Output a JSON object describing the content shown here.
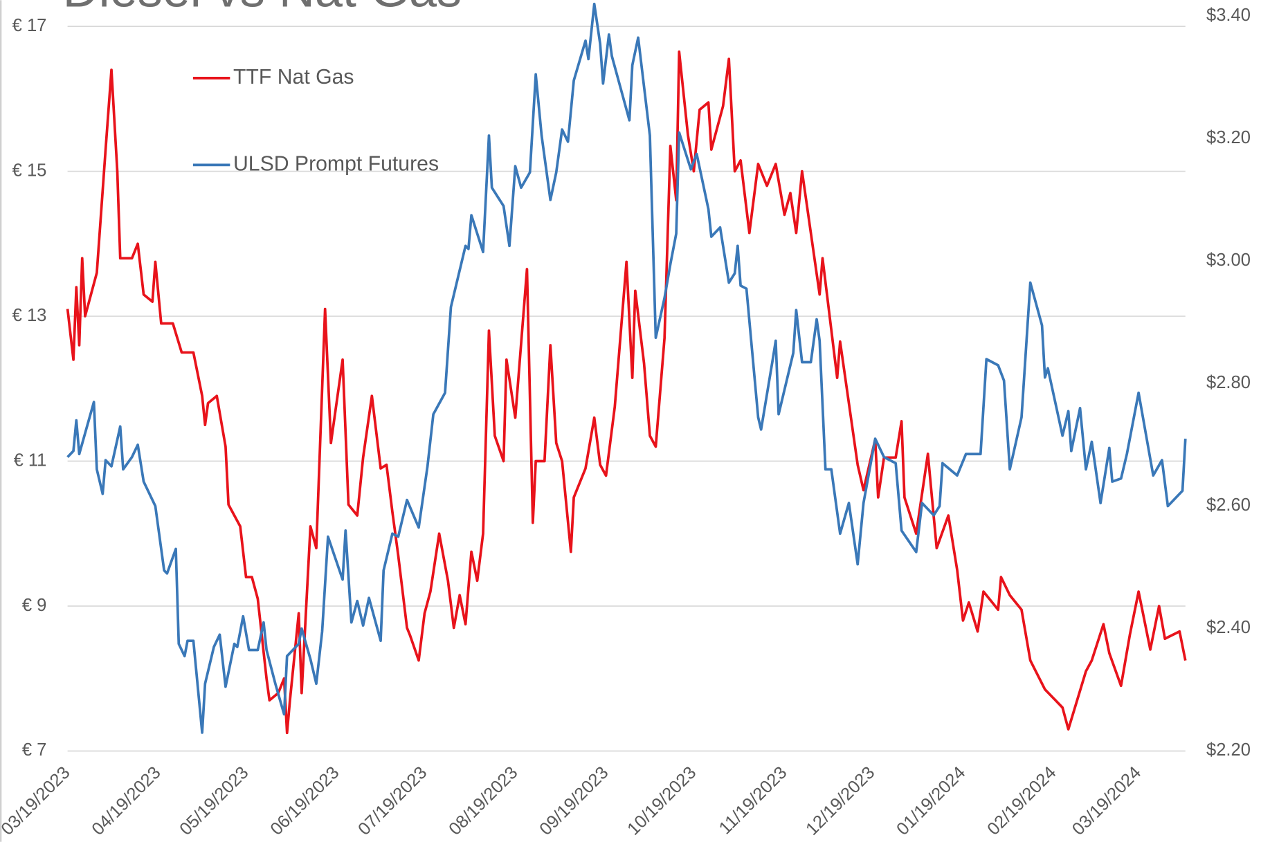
{
  "chart_data": {
    "type": "line",
    "title": "Diesel vs Nat Gas",
    "legend": "upper left",
    "grid": true,
    "xlim": [
      "03/19/2023",
      "04/04/2024"
    ],
    "xticks": [
      "03/19/2023",
      "04/19/2023",
      "05/19/2023",
      "06/19/2023",
      "07/19/2023",
      "08/19/2023",
      "09/19/2023",
      "10/19/2023",
      "11/19/2023",
      "12/19/2023",
      "01/19/2024",
      "02/19/2024",
      "03/19/2024"
    ],
    "ylim": [
      7,
      17.14
    ],
    "yticks": [
      {
        "value": 7,
        "label": "€ 7"
      },
      {
        "value": 9,
        "label": "€ 9"
      },
      {
        "value": 11,
        "label": "€ 11"
      },
      {
        "value": 13,
        "label": "€ 13"
      },
      {
        "value": 15,
        "label": "€ 15"
      },
      {
        "value": 17,
        "label": "€ 17"
      }
    ],
    "y2lim": [
      2.2,
      3.4
    ],
    "y2ticks": [
      {
        "value": 2.2,
        "label": "$2.20"
      },
      {
        "value": 2.4,
        "label": "$2.40"
      },
      {
        "value": 2.6,
        "label": "$2.60"
      },
      {
        "value": 2.8,
        "label": "$2.80"
      },
      {
        "value": 3.0,
        "label": "$3.00"
      },
      {
        "value": 3.2,
        "label": "$3.20"
      },
      {
        "value": 3.4,
        "label": "$3.40"
      }
    ],
    "series": [
      {
        "name": "TTF Nat Gas",
        "color": "#e8131b",
        "axis": "y",
        "x": [
          "03/19/2023",
          "03/21/2023",
          "03/22/2023",
          "03/23/2023",
          "03/24/2023",
          "03/25/2023",
          "03/29/2023",
          "04/01/2023",
          "04/03/2023",
          "04/05/2023",
          "04/06/2023",
          "04/10/2023",
          "04/12/2023",
          "04/14/2023",
          "04/17/2023",
          "04/18/2023",
          "04/20/2023",
          "04/24/2023",
          "04/27/2023",
          "05/01/2023",
          "05/04/2023",
          "05/05/2023",
          "05/06/2023",
          "05/09/2023",
          "05/12/2023",
          "05/13/2023",
          "05/17/2023",
          "05/19/2023",
          "05/21/2023",
          "05/23/2023",
          "05/26/2023",
          "05/27/2023",
          "05/30/2023",
          "06/01/2023",
          "06/02/2023",
          "06/03/2023",
          "06/06/2023",
          "06/07/2023",
          "06/10/2023",
          "06/12/2023",
          "06/15/2023",
          "06/17/2023",
          "06/21/2023",
          "06/23/2023",
          "06/26/2023",
          "06/28/2023",
          "07/01/2023",
          "07/04/2023",
          "07/06/2023",
          "07/08/2023",
          "07/10/2023",
          "07/13/2023",
          "07/14/2023",
          "07/17/2023",
          "07/19/2023",
          "07/21/2023",
          "07/24/2023",
          "07/27/2023",
          "07/29/2023",
          "07/31/2023",
          "08/02/2023",
          "08/04/2023",
          "08/06/2023",
          "08/08/2023",
          "08/10/2023",
          "08/12/2023",
          "08/15/2023",
          "08/16/2023",
          "08/19/2023",
          "08/23/2023",
          "08/25/2023",
          "08/26/2023",
          "08/29/2023",
          "08/31/2023",
          "09/02/2023",
          "09/04/2023",
          "09/07/2023",
          "09/08/2023",
          "09/12/2023",
          "09/15/2023",
          "09/17/2023",
          "09/19/2023",
          "09/22/2023",
          "09/26/2023",
          "09/28/2023",
          "09/29/2023",
          "10/02/2023",
          "10/04/2023",
          "10/06/2023",
          "10/09/2023",
          "10/11/2023",
          "10/13/2023",
          "10/14/2023",
          "10/17/2023",
          "10/19/2023",
          "10/21/2023",
          "10/24/2023",
          "10/25/2023",
          "10/29/2023",
          "10/31/2023",
          "11/02/2023",
          "11/04/2023",
          "11/07/2023",
          "11/10/2023",
          "11/13/2023",
          "11/16/2023",
          "11/19/2023",
          "11/21/2023",
          "11/23/2023",
          "11/25/2023",
          "12/01/2023",
          "12/02/2023",
          "12/07/2023",
          "12/08/2023",
          "12/14/2023",
          "12/16/2023",
          "12/20/2023",
          "12/21/2023",
          "12/23/2023",
          "12/27/2023",
          "12/29/2023",
          "12/30/2023",
          "01/03/2024",
          "01/07/2024",
          "01/10/2024",
          "01/14/2024",
          "01/17/2024",
          "01/19/2024",
          "01/21/2024",
          "01/24/2024",
          "01/26/2024",
          "01/31/2024",
          "02/01/2024",
          "02/04/2024",
          "02/08/2024",
          "02/11/2024",
          "02/16/2024",
          "02/22/2024",
          "02/24/2024",
          "03/01/2024",
          "03/03/2024",
          "03/07/2024",
          "03/09/2024",
          "03/13/2024",
          "03/16/2024",
          "03/19/2024",
          "03/23/2024",
          "03/26/2024",
          "03/28/2024",
          "04/02/2024",
          "04/04/2024"
        ],
        "values": [
          13.1,
          12.4,
          13.4,
          12.6,
          13.8,
          13.0,
          13.6,
          15.3,
          16.4,
          15.0,
          13.8,
          13.8,
          14.0,
          13.3,
          13.2,
          13.75,
          12.9,
          12.9,
          12.5,
          12.5,
          11.9,
          11.5,
          11.8,
          11.9,
          11.2,
          10.4,
          10.1,
          9.4,
          9.4,
          9.1,
          8.0,
          7.7,
          7.8,
          8.0,
          7.25,
          7.7,
          8.9,
          7.8,
          10.1,
          9.8,
          13.1,
          11.25,
          12.4,
          10.4,
          10.25,
          11.05,
          11.9,
          10.9,
          10.95,
          10.3,
          9.7,
          8.7,
          8.6,
          8.25,
          8.9,
          9.2,
          10.0,
          9.35,
          8.7,
          9.15,
          8.75,
          9.75,
          9.35,
          10.0,
          12.8,
          11.35,
          11.0,
          12.4,
          11.6,
          13.65,
          10.15,
          11.0,
          11.0,
          12.6,
          11.25,
          11.0,
          9.75,
          10.5,
          10.9,
          11.6,
          10.95,
          10.8,
          11.75,
          13.75,
          12.15,
          13.35,
          12.35,
          11.35,
          11.2,
          12.7,
          15.35,
          14.6,
          16.65,
          15.5,
          15.0,
          15.85,
          15.95,
          15.3,
          15.9,
          16.55,
          15.0,
          15.15,
          14.15,
          15.1,
          14.8,
          15.1,
          14.4,
          14.7,
          14.15,
          15.0,
          13.3,
          13.8,
          12.15,
          12.65,
          10.95,
          10.6,
          11.3,
          10.5,
          11.05,
          11.05,
          11.55,
          10.5,
          10.0,
          11.1,
          9.8,
          10.25,
          9.5,
          8.8,
          9.05,
          8.65,
          9.2,
          8.95,
          9.4,
          9.15,
          8.95,
          8.25,
          7.85,
          7.6,
          7.3,
          8.1,
          8.25,
          8.75,
          8.35,
          7.9,
          8.6,
          9.2,
          8.4,
          9.0,
          8.55,
          8.65,
          8.25
        ]
      },
      {
        "name": "ULSD Prompt Futures",
        "color": "#3a78b8",
        "axis": "y2",
        "x": [
          "03/19/2023",
          "03/21/2023",
          "03/22/2023",
          "03/23/2023",
          "03/28/2023",
          "03/29/2023",
          "03/31/2023",
          "04/01/2023",
          "04/03/2023",
          "04/06/2023",
          "04/07/2023",
          "04/10/2023",
          "04/12/2023",
          "04/14/2023",
          "04/18/2023",
          "04/21/2023",
          "04/22/2023",
          "04/25/2023",
          "04/26/2023",
          "04/28/2023",
          "04/29/2023",
          "05/01/2023",
          "05/04/2023",
          "05/05/2023",
          "05/08/2023",
          "05/10/2023",
          "05/12/2023",
          "05/15/2023",
          "05/16/2023",
          "05/18/2023",
          "05/20/2023",
          "05/23/2023",
          "05/25/2023",
          "05/26/2023",
          "05/29/2023",
          "06/01/2023",
          "06/02/2023",
          "06/06/2023",
          "06/07/2023",
          "06/10/2023",
          "06/12/2023",
          "06/14/2023",
          "06/16/2023",
          "06/21/2023",
          "06/22/2023",
          "06/24/2023",
          "06/26/2023",
          "06/28/2023",
          "06/30/2023",
          "07/04/2023",
          "07/05/2023",
          "07/08/2023",
          "07/10/2023",
          "07/13/2023",
          "07/17/2023",
          "07/20/2023",
          "07/22/2023",
          "07/26/2023",
          "07/28/2023",
          "07/31/2023",
          "08/02/2023",
          "08/03/2023",
          "08/04/2023",
          "08/08/2023",
          "08/10/2023",
          "08/11/2023",
          "08/15/2023",
          "08/17/2023",
          "08/19/2023",
          "08/21/2023",
          "08/24/2023",
          "08/26/2023",
          "08/28/2023",
          "08/31/2023",
          "09/02/2023",
          "09/04/2023",
          "09/06/2023",
          "09/08/2023",
          "09/12/2023",
          "09/13/2023",
          "09/15/2023",
          "09/17/2023",
          "09/18/2023",
          "09/20/2023",
          "09/21/2023",
          "09/23/2023",
          "09/27/2023",
          "09/28/2023",
          "09/30/2023",
          "10/04/2023",
          "10/06/2023",
          "10/09/2023",
          "10/11/2023",
          "10/13/2023",
          "10/14/2023",
          "10/18/2023",
          "10/20/2023",
          "10/24/2023",
          "10/25/2023",
          "10/28/2023",
          "10/31/2023",
          "11/02/2023",
          "11/03/2023",
          "11/04/2023",
          "11/06/2023",
          "11/10/2023",
          "11/11/2023",
          "11/15/2023",
          "11/16/2023",
          "11/17/2023",
          "11/22/2023",
          "11/23/2023",
          "11/25/2023",
          "11/28/2023",
          "11/30/2023",
          "12/01/2023",
          "12/03/2023",
          "12/05/2023",
          "12/08/2023",
          "12/11/2023",
          "12/14/2023",
          "12/16/2023",
          "12/20/2023",
          "12/23/2023",
          "12/27/2023",
          "12/29/2023",
          "01/03/2024",
          "01/05/2024",
          "01/09/2024",
          "01/11/2024",
          "01/12/2024",
          "01/17/2024",
          "01/20/2024",
          "01/23/2024",
          "01/25/2024",
          "01/27/2024",
          "01/31/2024",
          "02/02/2024",
          "02/04/2024",
          "02/08/2024",
          "02/11/2024",
          "02/15/2024",
          "02/16/2024",
          "02/17/2024",
          "02/22/2024",
          "02/24/2024",
          "02/25/2024",
          "02/28/2024",
          "03/01/2024",
          "03/03/2024",
          "03/06/2024",
          "03/09/2024",
          "03/10/2024",
          "03/13/2024",
          "03/15/2024",
          "03/19/2024",
          "03/24/2024",
          "03/27/2024",
          "03/29/2024",
          "04/03/2024",
          "04/04/2024"
        ],
        "values": [
          2.68,
          2.69,
          2.74,
          2.685,
          2.77,
          2.66,
          2.62,
          2.675,
          2.665,
          2.73,
          2.66,
          2.68,
          2.7,
          2.64,
          2.6,
          2.495,
          2.49,
          2.53,
          2.375,
          2.355,
          2.38,
          2.38,
          2.23,
          2.31,
          2.37,
          2.39,
          2.305,
          2.375,
          2.37,
          2.42,
          2.365,
          2.365,
          2.41,
          2.365,
          2.31,
          2.26,
          2.355,
          2.375,
          2.4,
          2.35,
          2.31,
          2.395,
          2.55,
          2.48,
          2.56,
          2.41,
          2.445,
          2.405,
          2.45,
          2.38,
          2.495,
          2.555,
          2.55,
          2.61,
          2.565,
          2.665,
          2.75,
          2.785,
          2.925,
          2.985,
          3.025,
          3.02,
          3.075,
          3.015,
          3.205,
          3.12,
          3.09,
          3.025,
          3.155,
          3.12,
          3.145,
          3.305,
          3.205,
          3.1,
          3.145,
          3.215,
          3.195,
          3.295,
          3.36,
          3.33,
          3.42,
          3.355,
          3.29,
          3.37,
          3.335,
          3.3,
          3.23,
          3.32,
          3.365,
          3.205,
          2.875,
          2.94,
          2.995,
          3.045,
          3.21,
          3.15,
          3.175,
          3.085,
          3.04,
          3.055,
          2.965,
          2.98,
          3.025,
          2.96,
          2.955,
          2.745,
          2.725,
          2.84,
          2.87,
          2.75,
          2.85,
          2.92,
          2.835,
          2.835,
          2.905,
          2.87,
          2.66,
          2.66,
          2.555,
          2.605,
          2.505,
          2.605,
          2.71,
          2.68,
          2.67,
          2.56,
          2.525,
          2.605,
          2.585,
          2.6,
          2.67,
          2.65,
          2.685,
          2.685,
          2.685,
          2.84,
          2.83,
          2.805,
          2.66,
          2.745,
          2.965,
          2.895,
          2.81,
          2.825,
          2.715,
          2.755,
          2.69,
          2.76,
          2.66,
          2.705,
          2.605,
          2.695,
          2.64,
          2.645,
          2.685,
          2.785,
          2.65,
          2.675,
          2.6,
          2.625,
          2.71
        ]
      }
    ]
  }
}
